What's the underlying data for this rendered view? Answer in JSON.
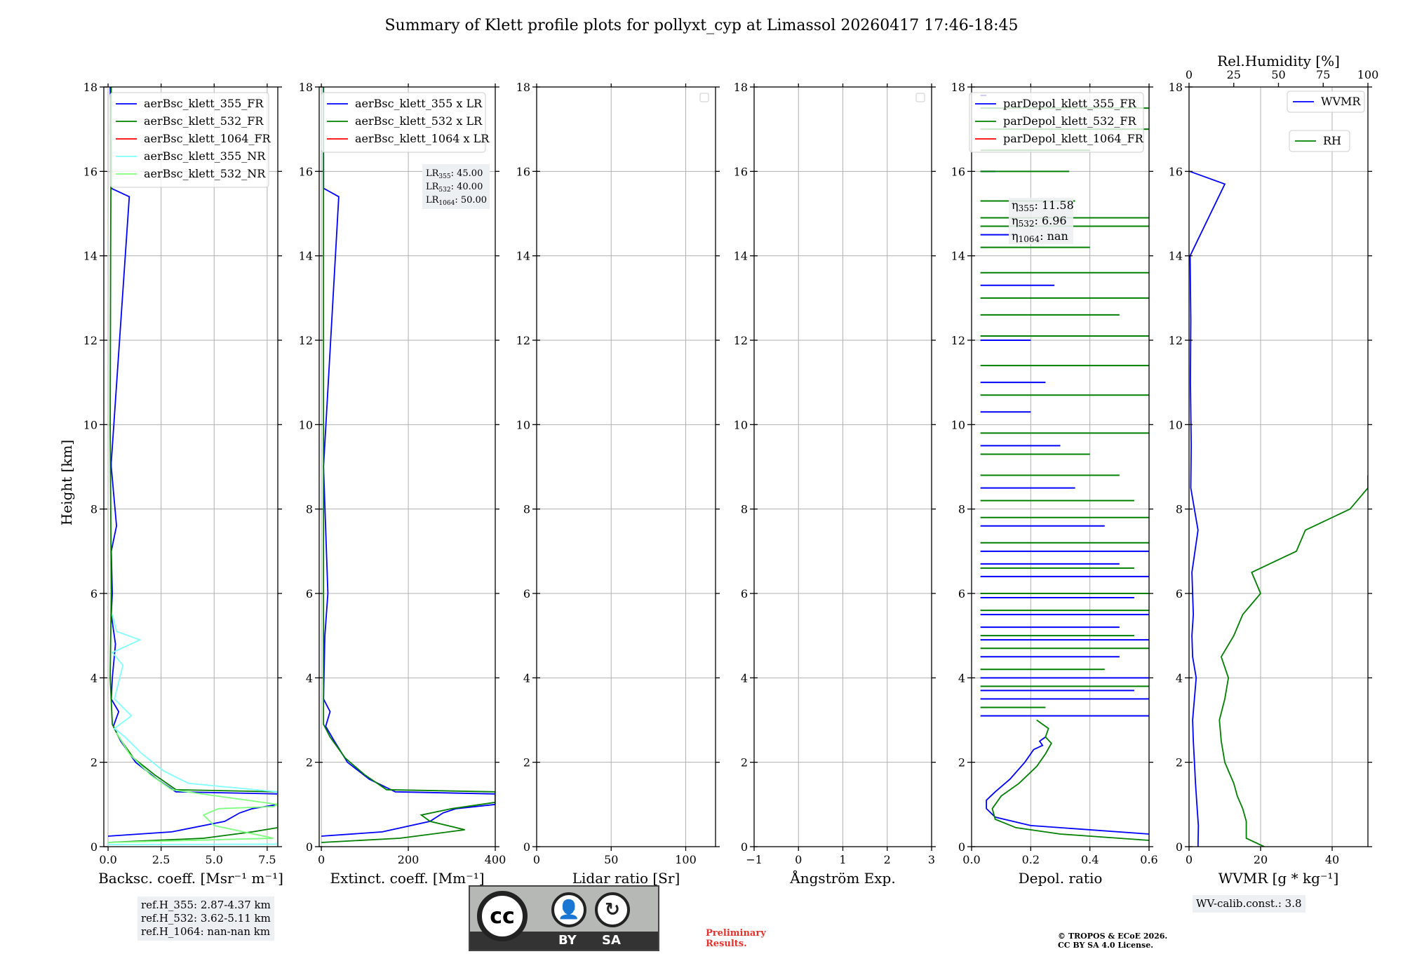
{
  "title": "Summary of Klett profile plots for pollyxt_cyp at Limassol 20260417 17:46-18:45",
  "ylabel": "Height [km]",
  "chart_data": [
    {
      "id": "bsc",
      "type": "line",
      "xlabel": "Backsc. coeff. [Msr⁻¹ m⁻¹]",
      "xlim": [
        -0.2,
        8.0
      ],
      "xticks": [
        0.0,
        2.5,
        5.0,
        7.5
      ],
      "xtick_labels": [
        "0.0",
        "2.5",
        "5.0",
        "7.5"
      ],
      "ylim": [
        0,
        18
      ],
      "yticks": [
        0,
        2,
        4,
        6,
        8,
        10,
        12,
        14,
        16,
        18
      ],
      "series": [
        {
          "name": "aerBsc_klett_355_FR",
          "color": "#0000ff",
          "x": [
            0.0,
            3.0,
            5.5,
            6.2,
            6.8,
            8.0,
            8.0,
            3.2,
            2.3,
            1.3,
            0.6,
            0.25,
            0.5,
            0.15,
            0.2,
            0.35,
            0.15,
            0.2,
            0.15,
            0.4,
            0.15,
            0.15,
            1.0,
            0.15,
            0.15,
            0.1
          ],
          "y": [
            0.25,
            0.35,
            0.6,
            0.8,
            0.9,
            1.0,
            1.25,
            1.3,
            1.6,
            2.0,
            2.5,
            2.85,
            3.2,
            3.5,
            4.0,
            4.8,
            5.5,
            6.0,
            7.0,
            7.6,
            9.0,
            9.1,
            15.4,
            15.6,
            16.5,
            18.0
          ]
        },
        {
          "name": "aerBsc_klett_532_FR",
          "color": "#008000",
          "x": [
            0.0,
            4.5,
            6.8,
            8.0,
            8.0,
            3.2,
            2.2,
            1.2,
            0.5,
            0.2,
            0.1,
            0.15,
            0.1,
            0.12,
            0.15
          ],
          "y": [
            0.1,
            0.2,
            0.35,
            0.45,
            1.3,
            1.35,
            1.7,
            2.1,
            2.6,
            2.9,
            4.0,
            6.0,
            10.0,
            14.0,
            18.0
          ]
        },
        {
          "name": "aerBsc_klett_1064_FR",
          "color": "#ff0000",
          "x": [],
          "y": []
        },
        {
          "name": "aerBsc_klett_355_NR",
          "color": "#7fffff",
          "x": [
            0.0,
            8.0,
            8.0,
            3.8,
            2.6,
            1.6,
            0.8,
            0.3,
            1.1,
            0.3,
            0.7,
            0.2,
            1.5,
            0.4,
            0.2
          ],
          "y": [
            0.05,
            0.06,
            1.3,
            1.5,
            1.8,
            2.2,
            2.6,
            2.8,
            3.1,
            3.5,
            4.3,
            4.6,
            4.9,
            5.1,
            5.5
          ]
        },
        {
          "name": "aerBsc_klett_532_NR",
          "color": "#7fff7f",
          "x": [
            0.0,
            7.8,
            5.0,
            4.5,
            5.2,
            7.8,
            8.0,
            3.0,
            2.0,
            1.0,
            0.4
          ],
          "y": [
            0.1,
            0.2,
            0.5,
            0.75,
            0.9,
            0.95,
            1.0,
            1.35,
            1.7,
            2.2,
            2.7
          ]
        }
      ]
    },
    {
      "id": "ext",
      "type": "line",
      "xlabel": "Extinct. coeff. [Mm⁻¹]",
      "xlim": [
        -5,
        400
      ],
      "xticks": [
        0,
        200,
        400
      ],
      "xtick_labels": [
        "0",
        "200",
        "400"
      ],
      "ylim": [
        0,
        18
      ],
      "yticks": [
        0,
        2,
        4,
        6,
        8,
        10,
        12,
        14,
        16,
        18
      ],
      "series": [
        {
          "name": "aerBsc_klett_355 x LR",
          "color": "#0000ff",
          "x": [
            0,
            140,
            250,
            280,
            310,
            400,
            400,
            170,
            110,
            60,
            30,
            10,
            20,
            5,
            8,
            15,
            5,
            40,
            5,
            5
          ],
          "y": [
            0.25,
            0.35,
            0.6,
            0.8,
            0.9,
            1.0,
            1.25,
            1.3,
            1.6,
            2.0,
            2.5,
            2.85,
            3.2,
            3.5,
            5.0,
            6.0,
            9.0,
            15.4,
            15.6,
            18.0
          ]
        },
        {
          "name": "aerBsc_klett_532 x LR",
          "color": "#008000",
          "x": [
            0,
            180,
            330,
            250,
            230,
            300,
            400,
            400,
            150,
            100,
            55,
            20,
            5,
            5,
            5
          ],
          "y": [
            0.1,
            0.2,
            0.4,
            0.6,
            0.75,
            0.9,
            1.05,
            1.3,
            1.35,
            1.7,
            2.1,
            2.6,
            2.9,
            10.0,
            18.0
          ]
        },
        {
          "name": "aerBsc_klett_1064 x LR",
          "color": "#ff0000",
          "x": [],
          "y": []
        }
      ],
      "annotation": [
        "LR",
        "355",
        ": 45.00",
        "LR",
        "532",
        ": 40.00",
        "LR",
        "1064",
        ": 50.00"
      ]
    },
    {
      "id": "lr",
      "type": "line",
      "xlabel": "Lidar ratio [Sr]",
      "xlim": [
        0,
        120
      ],
      "xticks": [
        0,
        50,
        100
      ],
      "xtick_labels": [
        "0",
        "50",
        "100"
      ],
      "ylim": [
        0,
        18
      ],
      "yticks": [
        0,
        2,
        4,
        6,
        8,
        10,
        12,
        14,
        16,
        18
      ],
      "series": []
    },
    {
      "id": "ae",
      "type": "line",
      "xlabel": "Ångström Exp.",
      "xlim": [
        -1,
        3
      ],
      "xticks": [
        -1,
        0,
        1,
        2,
        3
      ],
      "xtick_labels": [
        "−1",
        "0",
        "1",
        "2",
        "3"
      ],
      "ylim": [
        0,
        18
      ],
      "yticks": [
        0,
        2,
        4,
        6,
        8,
        10,
        12,
        14,
        16,
        18
      ],
      "series": []
    },
    {
      "id": "dep",
      "type": "line",
      "xlabel": "Depol. ratio",
      "xlim": [
        0,
        0.6
      ],
      "xticks": [
        0.0,
        0.2,
        0.4,
        0.6
      ],
      "xtick_labels": [
        "0.0",
        "0.2",
        "0.4",
        "0.6"
      ],
      "ylim": [
        0,
        18
      ],
      "yticks": [
        0,
        2,
        4,
        6,
        8,
        10,
        12,
        14,
        16,
        18
      ],
      "series": [
        {
          "name": "parDepol_klett_355_FR",
          "color": "#0000ff",
          "x": [
            0.6,
            0.2,
            0.08,
            0.05,
            0.05,
            0.08,
            0.13,
            0.18,
            0.2,
            0.21,
            0.24,
            0.23,
            0.25
          ],
          "y": [
            0.3,
            0.5,
            0.7,
            0.9,
            1.1,
            1.3,
            1.6,
            2.0,
            2.2,
            2.3,
            2.4,
            2.5,
            2.6
          ]
        },
        {
          "name": "parDepol_klett_532_FR",
          "color": "#008000",
          "x": [
            0.6,
            0.3,
            0.15,
            0.08,
            0.07,
            0.1,
            0.16,
            0.22,
            0.25,
            0.27,
            0.25,
            0.26,
            0.22
          ],
          "y": [
            0.15,
            0.3,
            0.45,
            0.65,
            0.9,
            1.2,
            1.5,
            1.9,
            2.2,
            2.45,
            2.6,
            2.8,
            3.0
          ]
        },
        {
          "name": "parDepol_klett_1064_FR",
          "color": "#ff0000",
          "x": [],
          "y": []
        }
      ],
      "spikes_355": [
        [
          3.1,
          0.6
        ],
        [
          3.5,
          0.6
        ],
        [
          3.7,
          0.55
        ],
        [
          4.0,
          0.6
        ],
        [
          4.5,
          0.5
        ],
        [
          4.9,
          0.6
        ],
        [
          5.2,
          0.5
        ],
        [
          5.5,
          0.6
        ],
        [
          5.9,
          0.55
        ],
        [
          6.4,
          0.6
        ],
        [
          6.7,
          0.5
        ],
        [
          7.0,
          0.6
        ],
        [
          7.6,
          0.45
        ],
        [
          8.5,
          0.35
        ],
        [
          9.5,
          0.3
        ],
        [
          10.3,
          0.2
        ],
        [
          11.0,
          0.25
        ],
        [
          12.0,
          0.2
        ],
        [
          13.3,
          0.28
        ],
        [
          14.5,
          0.15
        ],
        [
          16.0,
          0.08
        ],
        [
          17.8,
          0.05
        ]
      ],
      "spikes_532": [
        [
          3.3,
          0.25
        ],
        [
          3.8,
          0.6
        ],
        [
          4.2,
          0.45
        ],
        [
          4.7,
          0.6
        ],
        [
          5.0,
          0.55
        ],
        [
          5.6,
          0.6
        ],
        [
          6.0,
          0.6
        ],
        [
          6.6,
          0.55
        ],
        [
          7.2,
          0.6
        ],
        [
          7.8,
          0.6
        ],
        [
          8.2,
          0.55
        ],
        [
          8.8,
          0.5
        ],
        [
          9.3,
          0.4
        ],
        [
          9.8,
          0.6
        ],
        [
          10.7,
          0.6
        ],
        [
          11.4,
          0.6
        ],
        [
          12.1,
          0.6
        ],
        [
          12.6,
          0.5
        ],
        [
          13.0,
          0.6
        ],
        [
          13.6,
          0.6
        ],
        [
          14.2,
          0.4
        ],
        [
          14.7,
          0.6
        ],
        [
          14.9,
          0.6
        ],
        [
          15.3,
          0.35
        ],
        [
          16.0,
          0.33
        ],
        [
          16.5,
          0.4
        ],
        [
          17.0,
          0.6
        ],
        [
          17.5,
          0.6
        ]
      ],
      "annotation": [
        "η",
        "355",
        ": 11.58",
        "η",
        "532",
        ": 6.96",
        "η",
        "1064",
        ": nan"
      ]
    },
    {
      "id": "wv",
      "type": "line",
      "xlabel": "WVMR [g * kg⁻¹]",
      "xlim": [
        0,
        50
      ],
      "xticks": [
        0,
        20,
        40
      ],
      "xtick_labels": [
        "0",
        "20",
        "40"
      ],
      "ylim": [
        0,
        18
      ],
      "yticks": [
        0,
        2,
        4,
        6,
        8,
        10,
        12,
        14,
        16,
        18
      ],
      "top_axis": {
        "label": "Rel.Humidity [%]",
        "lim": [
          0,
          100
        ],
        "ticks": [
          0,
          25,
          50,
          75,
          100
        ],
        "tick_labels": [
          "0",
          "25",
          "50",
          "75",
          "100"
        ]
      },
      "series": [
        {
          "name": "WVMR",
          "color": "#0000ff",
          "axis": "bottom",
          "x": [
            2.5,
            2.6,
            2.2,
            1.8,
            1.5,
            1.2,
            1.0,
            2.0,
            1.0,
            0.8,
            1.2,
            0.8,
            2.5,
            0.5,
            0.6,
            0.4,
            0.5,
            0.3,
            10.0,
            0.2
          ],
          "y": [
            0.0,
            0.5,
            1.0,
            1.5,
            2.0,
            2.5,
            3.0,
            4.0,
            4.5,
            5.0,
            5.5,
            6.5,
            7.5,
            8.5,
            9.5,
            11.0,
            12.5,
            14.0,
            15.7,
            16.0
          ]
        },
        {
          "name": "RH",
          "color": "#008000",
          "axis": "top",
          "x": [
            42,
            32,
            32,
            30,
            27,
            25,
            20,
            18,
            17,
            20,
            22,
            18,
            25,
            30,
            40,
            35,
            60,
            65,
            90,
            100,
            100
          ],
          "y": [
            0.0,
            0.2,
            0.6,
            0.9,
            1.2,
            1.5,
            2.0,
            2.5,
            3.0,
            3.5,
            4.0,
            4.5,
            5.0,
            5.5,
            6.0,
            6.5,
            7.0,
            7.5,
            8.0,
            8.5,
            8.8
          ]
        }
      ],
      "annotation": "WV-calib.const.: 3.8"
    }
  ],
  "refbox": [
    "ref.H_355: 2.87-4.37 km",
    "ref.H_532: 3.62-5.11 km",
    "ref.H_1064: nan-nan km"
  ],
  "license_badge": {
    "cc": "cc",
    "by": "BY",
    "sa": "SA"
  },
  "preliminary": [
    "Preliminary",
    "Results."
  ],
  "copyright": [
    "© TROPOS & ECoE 2026.",
    "CC BY SA 4.0 License."
  ]
}
